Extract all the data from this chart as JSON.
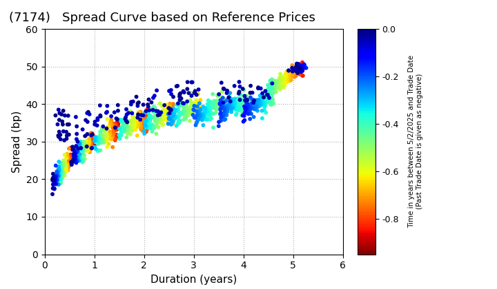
{
  "title": "(7174)   Spread Curve based on Reference Prices",
  "xlabel": "Duration (years)",
  "ylabel": "Spread (bp)",
  "xlim": [
    0,
    6
  ],
  "ylim": [
    0,
    60
  ],
  "xticks": [
    0,
    1,
    2,
    3,
    4,
    5,
    6
  ],
  "yticks": [
    0,
    10,
    20,
    30,
    40,
    50,
    60
  ],
  "colorbar_label_line1": "Time in years between 5/2/2025 and Trade Date",
  "colorbar_label_line2": "(Past Trade Date is given as negative)",
  "cbar_ticks": [
    0.0,
    -0.2,
    -0.4,
    -0.6,
    -0.8
  ],
  "cmap": "jet_r",
  "vmin": -0.95,
  "vmax": 0.0,
  "background_color": "#ffffff",
  "grid_color": "#b0b0b0",
  "marker_size": 18,
  "title_fontsize": 13,
  "axis_label_fontsize": 11
}
